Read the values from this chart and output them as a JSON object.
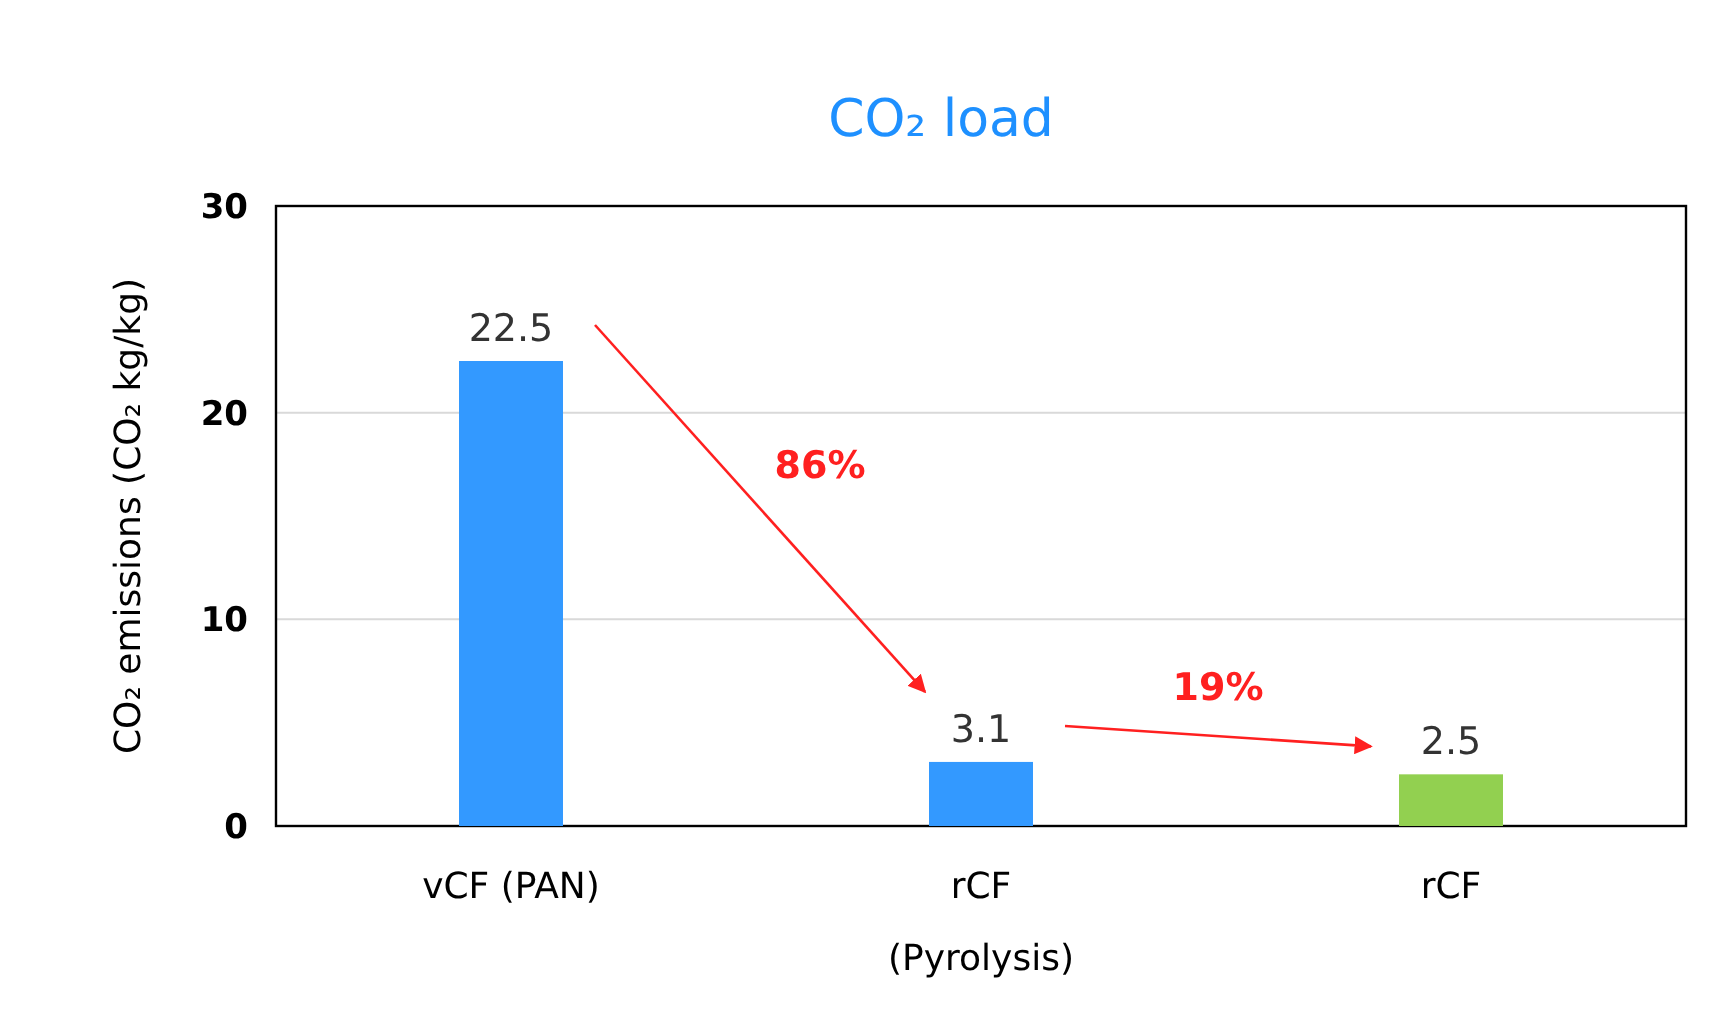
{
  "chart_data": {
    "type": "bar",
    "title": "CO₂ load",
    "ylabel": "CO₂ emissions (CO₂ kg/kg)",
    "categories": [
      "vCF (PAN)",
      "rCF (Pyrolysis)",
      "rCF"
    ],
    "values": [
      22.5,
      3.1,
      2.5
    ],
    "colors": [
      "#3399ff",
      "#3399ff",
      "#92d050"
    ],
    "ylim": [
      0,
      30
    ],
    "yticks": [
      0,
      10,
      20,
      30
    ],
    "grid": "y",
    "data_labels": true,
    "annotations": [
      "86%",
      "19%"
    ]
  }
}
